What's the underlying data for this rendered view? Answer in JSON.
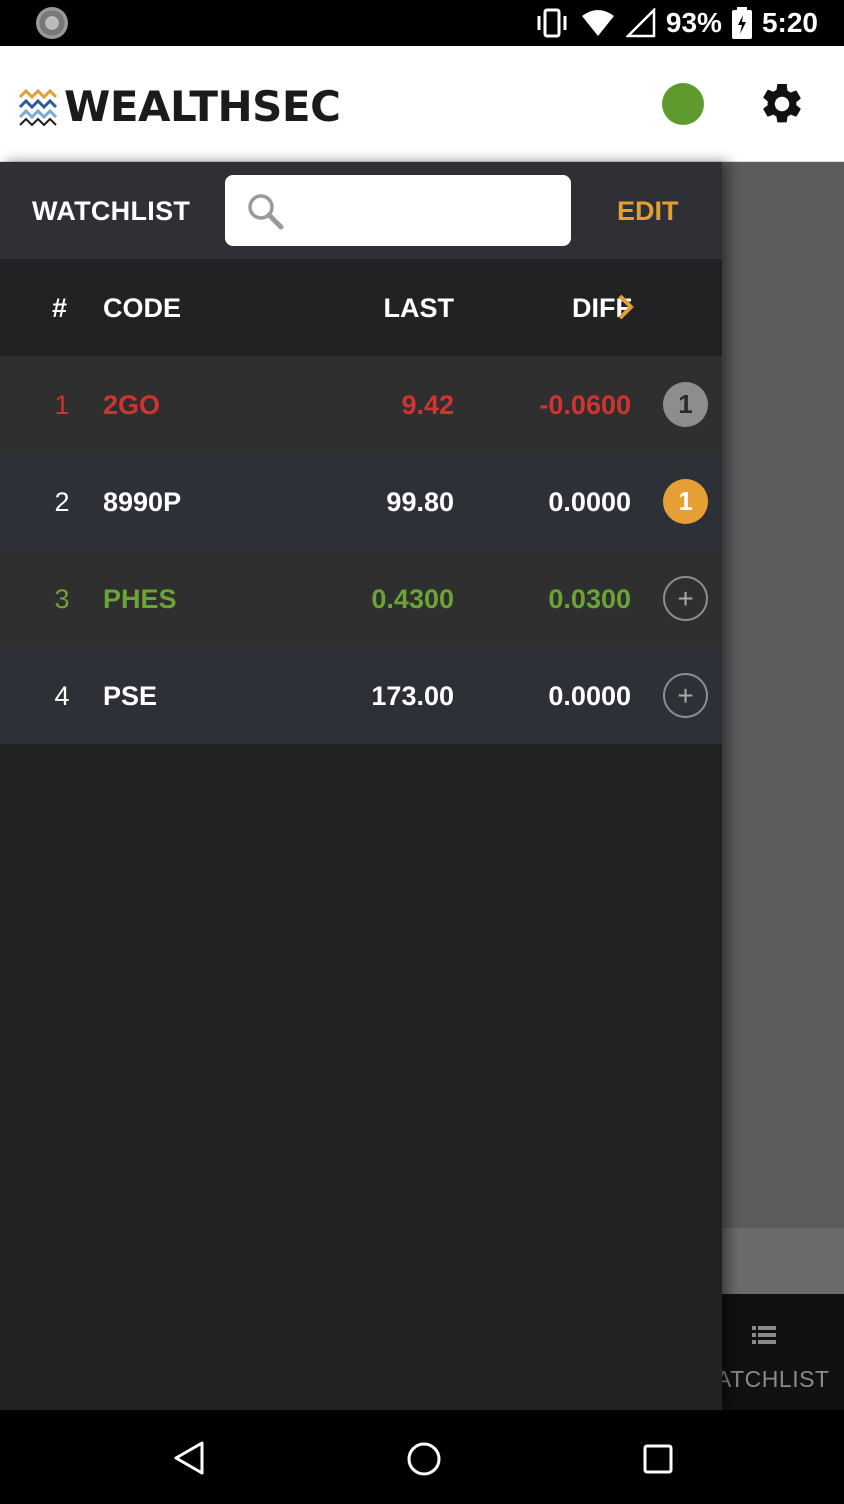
{
  "status_bar": {
    "battery": "93%",
    "time": "5:20"
  },
  "app_bar": {
    "logo_text": "WEALTHSEC",
    "connection_color": "#5e9a2e"
  },
  "watchlist": {
    "title": "WATCHLIST",
    "search": {
      "value": "",
      "placeholder": ""
    },
    "edit_label": "EDIT",
    "columns": {
      "num": "#",
      "code": "CODE",
      "last": "LAST",
      "diff": "DIFF"
    },
    "rows": [
      {
        "num": "1",
        "code": "2GO",
        "last": "9.42",
        "diff": "-0.0600",
        "badge": "1",
        "badge_type": "grey",
        "text_color": "#d13430",
        "bg": "#2f2f2f"
      },
      {
        "num": "2",
        "code": "8990P",
        "last": "99.80",
        "diff": "0.0000",
        "badge": "1",
        "badge_type": "orange",
        "text_color": "#ffffff",
        "bg": "#2e3037"
      },
      {
        "num": "3",
        "code": "PHES",
        "last": "0.4300",
        "diff": "0.0300",
        "badge": "+",
        "badge_type": "add",
        "text_color": "#6aa336",
        "bg": "#2f2f2f"
      },
      {
        "num": "4",
        "code": "PSE",
        "last": "173.00",
        "diff": "0.0000",
        "badge": "+",
        "badge_type": "add",
        "text_color": "#ffffff",
        "bg": "#2e3037"
      }
    ]
  },
  "bottom_tab": {
    "label": "ATCHLIST",
    "icon": "list-icon"
  },
  "colors": {
    "accent": "#e2a033",
    "negative": "#d13430",
    "positive": "#6aa336"
  }
}
